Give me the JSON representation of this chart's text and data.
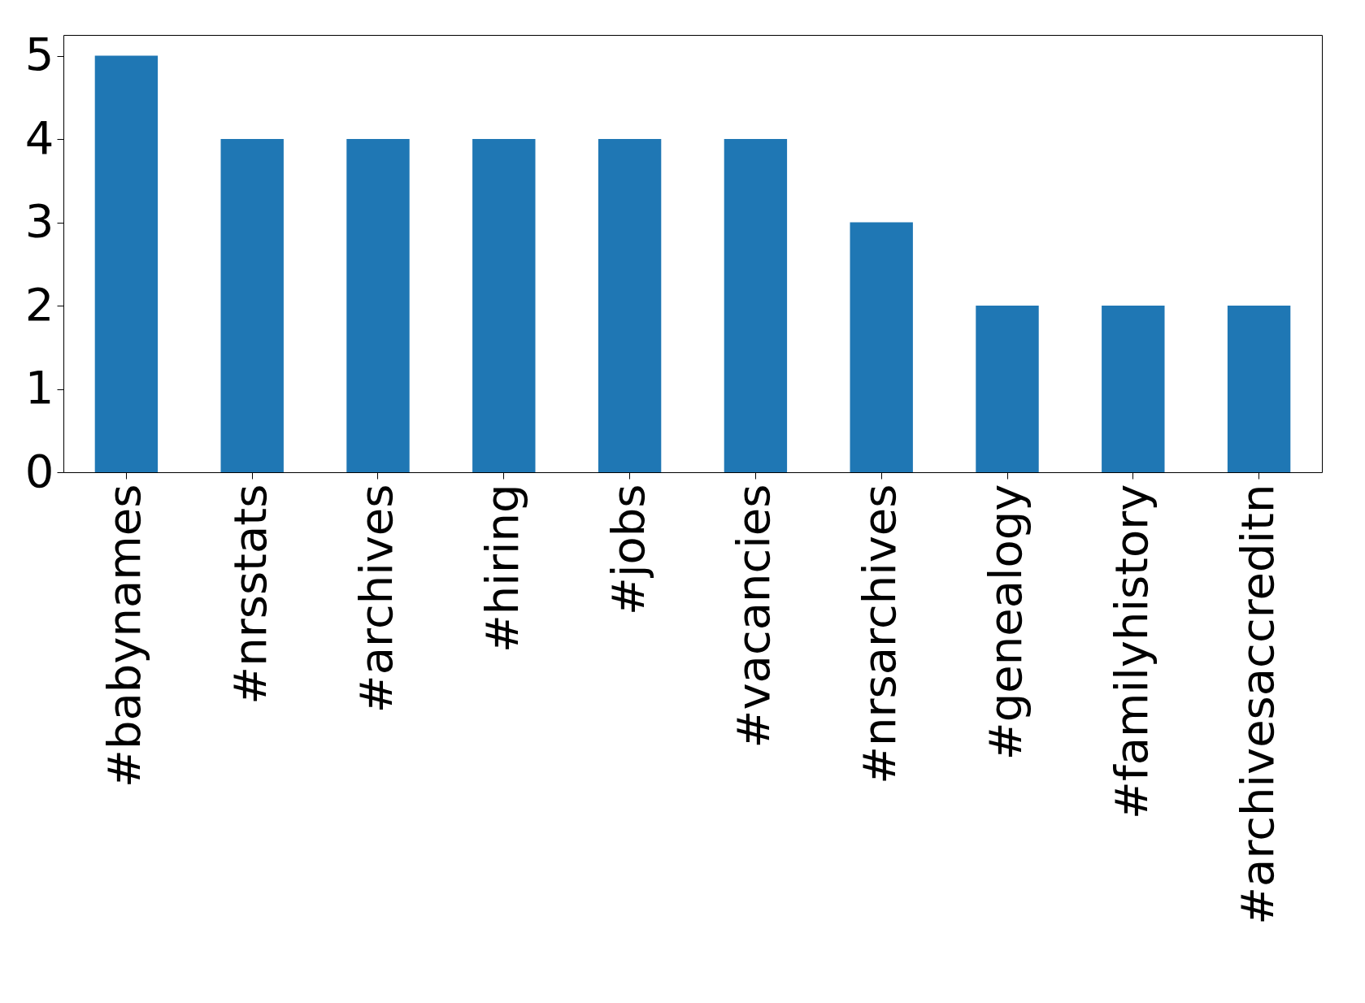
{
  "chart_data": {
    "type": "bar",
    "categories": [
      "#babynames",
      "#nrsstats",
      "#archives",
      "#hiring",
      "#jobs",
      "#vacancies",
      "#nrsarchives",
      "#genealogy",
      "#familyhistory",
      "#archivesaccreditn"
    ],
    "values": [
      5,
      4,
      4,
      4,
      4,
      4,
      3,
      2,
      2,
      2
    ],
    "color": "#1f77b4",
    "ylim": [
      0,
      5.25
    ],
    "yticks": [
      0,
      1,
      2,
      3,
      4,
      5
    ],
    "grid": false
  }
}
